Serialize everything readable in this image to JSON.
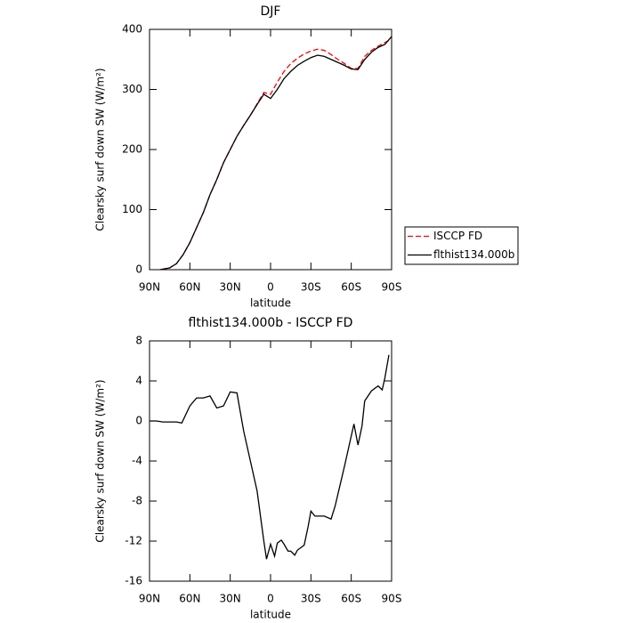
{
  "chart_data": [
    {
      "type": "line",
      "title": "DJF",
      "xlabel": "latitude",
      "ylabel": "Clearsky surf down SW (W/m²)",
      "xlim": [
        90,
        -90
      ],
      "ylim": [
        0,
        400
      ],
      "xticks": [
        {
          "value": 90,
          "label": "90N"
        },
        {
          "value": 60,
          "label": "60N"
        },
        {
          "value": 30,
          "label": "30N"
        },
        0,
        {
          "value": -30,
          "label": "30S"
        },
        {
          "value": -60,
          "label": "60S"
        },
        {
          "value": -90,
          "label": "90S"
        }
      ],
      "yticks": [
        0,
        100,
        200,
        300,
        400
      ],
      "legend": "right",
      "x": [
        82,
        80,
        75,
        70,
        65,
        60,
        55,
        50,
        45,
        40,
        35,
        30,
        25,
        20,
        15,
        10,
        5,
        0,
        -5,
        -10,
        -15,
        -20,
        -25,
        -30,
        -35,
        -40,
        -45,
        -50,
        -55,
        -60,
        -65,
        -70,
        -75,
        -80,
        -85,
        -90
      ],
      "series": [
        {
          "name": "ISCCP FD",
          "color": "#ff0000",
          "linestyle": "dashed",
          "values": [
            0,
            1,
            3,
            10,
            25,
            45,
            70,
            95,
            125,
            150,
            178,
            200,
            222,
            240,
            257,
            276,
            295,
            292,
            312,
            330,
            343,
            352,
            359,
            364,
            367,
            365,
            358,
            350,
            343,
            335,
            335,
            355,
            365,
            372,
            378,
            384
          ]
        },
        {
          "name": "flthist134.000b",
          "color": "#000000",
          "linestyle": "solid",
          "values": [
            0,
            1,
            3,
            10,
            25,
            45,
            70,
            95,
            125,
            150,
            178,
            200,
            222,
            240,
            257,
            275,
            292,
            285,
            300,
            318,
            330,
            340,
            347,
            353,
            357,
            355,
            350,
            345,
            340,
            334,
            333,
            350,
            362,
            370,
            375,
            388
          ]
        }
      ]
    },
    {
      "type": "line",
      "title": "flthist134.000b - ISCCP FD",
      "xlabel": "latitude",
      "ylabel": "Clearsky surf down SW (W/m²)",
      "xlim": [
        90,
        -90
      ],
      "ylim": [
        -16,
        8
      ],
      "xticks": [
        {
          "value": 90,
          "label": "90N"
        },
        {
          "value": 60,
          "label": "60N"
        },
        {
          "value": 30,
          "label": "30N"
        },
        0,
        {
          "value": -30,
          "label": "30S"
        },
        {
          "value": -60,
          "label": "60S"
        },
        {
          "value": -90,
          "label": "90S"
        }
      ],
      "yticks": [
        8,
        4,
        0,
        -4,
        -8,
        -12,
        -16
      ],
      "x": [
        90,
        85,
        80,
        75,
        70,
        66,
        60,
        55,
        50,
        45,
        40,
        35,
        30,
        25,
        20,
        15,
        10,
        5,
        3,
        0,
        -3,
        -5,
        -8,
        -10,
        -13,
        -15,
        -18,
        -20,
        -25,
        -28,
        -30,
        -33,
        -40,
        -45,
        -48,
        -55,
        -60,
        -62,
        -65,
        -68,
        -70,
        -75,
        -80,
        -83,
        -85,
        -88
      ],
      "series": [
        {
          "color": "#000000",
          "linestyle": "solid",
          "values": [
            0,
            0,
            -0.1,
            -0.1,
            -0.1,
            -0.2,
            1.5,
            2.3,
            2.3,
            2.5,
            1.3,
            1.5,
            2.9,
            2.8,
            -1.0,
            -4,
            -7,
            -12,
            -13.8,
            -12.3,
            -13.5,
            -12.2,
            -11.9,
            -12.3,
            -13,
            -13,
            -13.4,
            -12.9,
            -12.4,
            -10.5,
            -9,
            -9.5,
            -9.5,
            -9.8,
            -8.5,
            -4.5,
            -1.5,
            -0.3,
            -2.4,
            -0.5,
            2.0,
            3.0,
            3.5,
            3.1,
            4.3,
            6.6
          ]
        }
      ]
    }
  ]
}
